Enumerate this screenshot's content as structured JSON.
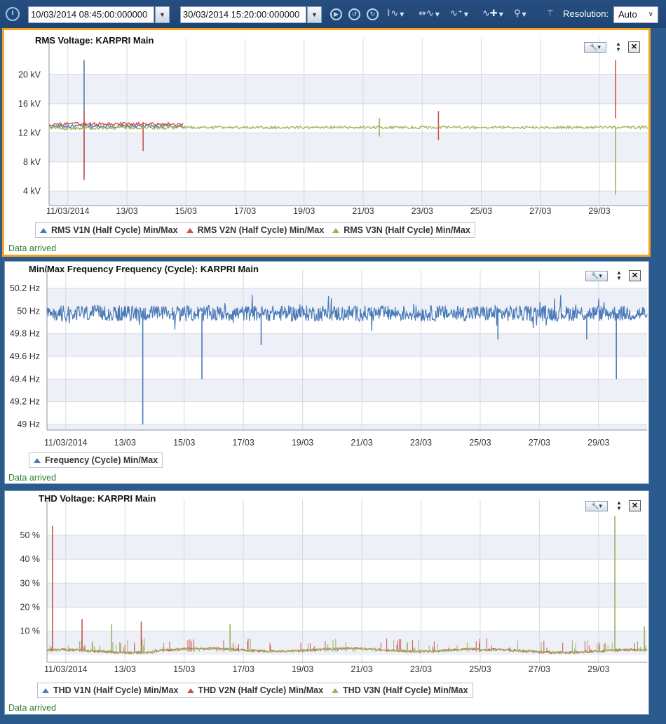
{
  "toolbar": {
    "start_date": "10/03/2014 08:45:00:000000",
    "end_date": "30/03/2014 15:20:00:000000",
    "resolution_label": "Resolution:",
    "resolution_value": "Auto",
    "icons": [
      "clock-icon",
      "play-icon",
      "undo-icon",
      "redo-icon",
      "waveform-icon",
      "waveform-add-icon",
      "waveform-settings-icon",
      "waveform-plus-icon",
      "zoom-icon",
      "wand-icon"
    ]
  },
  "x_ticks": [
    "11/03/2014",
    "13/03",
    "15/03",
    "17/03",
    "19/03",
    "21/03",
    "23/03",
    "25/03",
    "27/03",
    "29/03"
  ],
  "panels": [
    {
      "title": "RMS Voltage: KARPRI Main",
      "status": "Data arrived",
      "legend": [
        {
          "label": "RMS V1N (Half Cycle) Min/Max",
          "color": "#4a7ab8"
        },
        {
          "label": "RMS V2N (Half Cycle) Min/Max",
          "color": "#c9544a"
        },
        {
          "label": "RMS V3N (Half Cycle) Min/Max",
          "color": "#9cb259"
        }
      ],
      "y_ticks": [
        "20 kV",
        "16 kV",
        "12 kV",
        "8 kV",
        "4 kV"
      ]
    },
    {
      "title": "Min/Max Frequency Frequency (Cycle): KARPRI Main",
      "status": "Data arrived",
      "legend": [
        {
          "label": "Frequency (Cycle) Min/Max",
          "color": "#4a7ab8"
        }
      ],
      "y_ticks": [
        "50.2 Hz",
        "50 Hz",
        "49.8 Hz",
        "49.6 Hz",
        "49.4 Hz",
        "49.2 Hz",
        "49 Hz"
      ]
    },
    {
      "title": "THD Voltage: KARPRI Main",
      "status": "Data arrived",
      "legend": [
        {
          "label": "THD V1N (Half Cycle) Min/Max",
          "color": "#4a7ab8"
        },
        {
          "label": "THD V2N (Half Cycle) Min/Max",
          "color": "#c9544a"
        },
        {
          "label": "THD V3N (Half Cycle) Min/Max",
          "color": "#9cb259"
        }
      ],
      "y_ticks": [
        "50 %",
        "40 %",
        "30 %",
        "20 %",
        "10 %"
      ]
    }
  ],
  "chart_data": [
    {
      "type": "line",
      "title": "RMS Voltage: KARPRI Main",
      "x_range": [
        "10/03/2014",
        "30/03/2014"
      ],
      "ylim": [
        2,
        24
      ],
      "y_unit": "kV",
      "series": [
        {
          "name": "RMS V1N (Half Cycle) Min/Max",
          "baseline": 12.8,
          "spikes": [
            {
              "x": "11/03",
              "min": 6,
              "max": 22
            }
          ]
        },
        {
          "name": "RMS V2N (Half Cycle) Min/Max",
          "baseline": 13.1,
          "spikes": [
            {
              "x": "11/03",
              "min": 5.5,
              "max": 15
            },
            {
              "x": "13/03",
              "min": 9.5,
              "max": 13.5
            },
            {
              "x": "23/03",
              "min": 11,
              "max": 15
            },
            {
              "x": "29/03",
              "min": 14,
              "max": 22
            }
          ]
        },
        {
          "name": "RMS V3N (Half Cycle) Min/Max",
          "baseline": 12.7,
          "spikes": [
            {
              "x": "21/03",
              "min": 11.5,
              "max": 14
            },
            {
              "x": "29/03",
              "min": 3.5,
              "max": 12.7
            }
          ]
        }
      ]
    },
    {
      "type": "line",
      "title": "Min/Max Frequency Frequency (Cycle): KARPRI Main",
      "x_range": [
        "10/03/2014",
        "30/03/2014"
      ],
      "ylim": [
        48.95,
        50.3
      ],
      "y_unit": "Hz",
      "series": [
        {
          "name": "Frequency (Cycle) Min/Max",
          "baseline": 49.98,
          "band": 0.06,
          "dips": [
            {
              "x": "13/03",
              "min": 49.0
            },
            {
              "x": "15/03",
              "min": 49.4
            },
            {
              "x": "17/03",
              "min": 49.7
            },
            {
              "x": "25/03",
              "min": 49.75
            },
            {
              "x": "28/03",
              "min": 49.75
            },
            {
              "x": "29/03",
              "min": 49.4
            }
          ]
        }
      ]
    },
    {
      "type": "line",
      "title": "THD Voltage: KARPRI Main",
      "x_range": [
        "10/03/2014",
        "30/03/2014"
      ],
      "ylim": [
        -3,
        62
      ],
      "y_unit": "%",
      "series": [
        {
          "name": "THD V1N (Half Cycle) Min/Max",
          "baseline": 1.5
        },
        {
          "name": "THD V2N (Half Cycle) Min/Max",
          "baseline": 1.5,
          "spikes": [
            {
              "x": "10/03",
              "max": 54
            },
            {
              "x": "11/03",
              "max": 15
            },
            {
              "x": "13/03",
              "max": 14
            }
          ]
        },
        {
          "name": "THD V3N (Half Cycle) Min/Max",
          "baseline": 1.5,
          "spikes": [
            {
              "x": "12/03",
              "max": 13
            },
            {
              "x": "16/03",
              "max": 13
            },
            {
              "x": "29/03",
              "max": 58
            },
            {
              "x": "30/03",
              "max": 12
            }
          ]
        }
      ]
    }
  ]
}
